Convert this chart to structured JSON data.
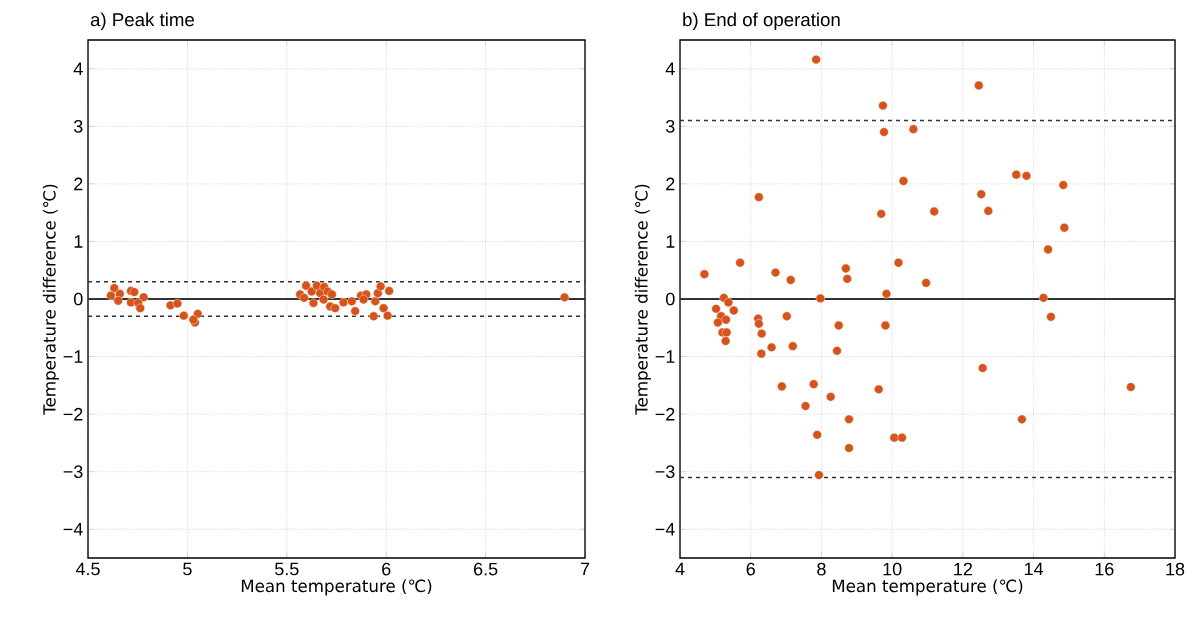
{
  "chart_data": [
    {
      "type": "scatter",
      "title": "a) Peak time",
      "xlabel": "Mean temperature (℃)",
      "ylabel": "Temperature difference (℃)",
      "color": "#d95319",
      "marker": "circle",
      "grid": true,
      "x": [
        4.632,
        4.615,
        4.66,
        4.652,
        4.716,
        4.733,
        4.78,
        4.716,
        4.753,
        4.763,
        4.915,
        4.95,
        4.982,
        5.052,
        5.038,
        5.03,
        5.567,
        5.597,
        5.587,
        5.625,
        5.651,
        5.668,
        5.688,
        5.705,
        5.727,
        5.634,
        5.685,
        5.718,
        5.743,
        5.785,
        5.827,
        5.844,
        5.873,
        5.9,
        5.886,
        5.937,
        5.945,
        5.958,
        5.972,
        5.987,
        6.007,
        6.015,
        6.897
      ],
      "values": [
        0.19,
        0.06,
        0.09,
        -0.03,
        0.14,
        0.12,
        0.03,
        -0.06,
        -0.07,
        -0.16,
        -0.11,
        -0.08,
        -0.29,
        -0.26,
        -0.41,
        -0.36,
        0.08,
        0.23,
        0.02,
        0.13,
        0.23,
        0.1,
        0.21,
        0.13,
        0.08,
        -0.07,
        -0.01,
        -0.13,
        -0.16,
        -0.06,
        -0.04,
        -0.21,
        0.06,
        0.08,
        -0.01,
        -0.3,
        -0.04,
        0.1,
        0.22,
        -0.16,
        -0.29,
        0.14,
        0.03
      ],
      "xlim": [
        4.5,
        7
      ],
      "xticks": [
        4.5,
        5,
        5.5,
        6,
        6.5,
        7
      ],
      "ylim": [
        -4.5,
        4.5
      ],
      "yticks": [
        {
          "value": -4,
          "label": "−4"
        },
        {
          "value": -3,
          "label": "−3"
        },
        {
          "value": -2,
          "label": "−2"
        },
        {
          "value": -1,
          "label": "−1"
        },
        0,
        1,
        2,
        3,
        4
      ],
      "ref_lines": [
        {
          "axis": "y",
          "value": 0,
          "label": null,
          "color": "#333333",
          "line_style": "solid"
        },
        {
          "axis": "y",
          "value": 0.3,
          "label": null,
          "color": "#333333",
          "line_style": "dashed"
        },
        {
          "axis": "y",
          "value": -0.3,
          "label": null,
          "color": "#333333",
          "line_style": "dashed"
        }
      ]
    },
    {
      "type": "scatter",
      "title": "b) End of operation",
      "xlabel": "Mean temperature (℃)",
      "ylabel": "Temperature difference (℃)",
      "color": "#d95319",
      "marker": "circle",
      "grid": true,
      "x": [
        7.85,
        9.74,
        9.77,
        10.6,
        10.32,
        6.23,
        9.69,
        11.19,
        5.7,
        4.69,
        6.7,
        7.13,
        8.69,
        8.73,
        10.18,
        10.96,
        9.84,
        7.97,
        5.24,
        5.37,
        5.02,
        5.52,
        5.16,
        5.3,
        5.07,
        5.2,
        5.32,
        5.29,
        6.21,
        6.23,
        6.31,
        7.02,
        8.49,
        9.81,
        6.59,
        7.19,
        6.3,
        8.44,
        6.88,
        7.78,
        9.62,
        8.26,
        7.55,
        8.78,
        7.88,
        10.06,
        10.28,
        8.78,
        7.93,
        12.45,
        13.51,
        13.8,
        14.84,
        12.52,
        12.72,
        14.87,
        14.41,
        14.28,
        14.49,
        12.56,
        16.75,
        13.67
      ],
      "values": [
        4.16,
        3.36,
        2.9,
        2.95,
        2.05,
        1.77,
        1.48,
        1.52,
        0.63,
        0.43,
        0.46,
        0.33,
        0.53,
        0.35,
        0.63,
        0.28,
        0.09,
        0.01,
        0.02,
        -0.06,
        -0.17,
        -0.2,
        -0.3,
        -0.36,
        -0.41,
        -0.58,
        -0.58,
        -0.73,
        -0.34,
        -0.43,
        -0.6,
        -0.3,
        -0.46,
        -0.46,
        -0.84,
        -0.82,
        -0.95,
        -0.9,
        -1.52,
        -1.48,
        -1.57,
        -1.7,
        -1.86,
        -2.09,
        -2.36,
        -2.41,
        -2.41,
        -2.59,
        -3.06,
        3.71,
        2.16,
        2.14,
        1.98,
        1.82,
        1.53,
        1.24,
        0.86,
        0.02,
        -0.31,
        -1.2,
        -1.53,
        -2.09
      ],
      "xlim": [
        4,
        18
      ],
      "xticks": [
        4,
        6,
        8,
        10,
        12,
        14,
        16,
        18
      ],
      "ylim": [
        -4.5,
        4.5
      ],
      "yticks": [
        {
          "value": -4,
          "label": "−4"
        },
        {
          "value": -3,
          "label": "−3"
        },
        {
          "value": -2,
          "label": "−2"
        },
        {
          "value": -1,
          "label": "−1"
        },
        0,
        1,
        2,
        3,
        4
      ],
      "ref_lines": [
        {
          "axis": "y",
          "value": 0,
          "label": null,
          "color": "#333333",
          "line_style": "solid"
        },
        {
          "axis": "y",
          "value": 3.1,
          "label": null,
          "color": "#333333",
          "line_style": "dashed"
        },
        {
          "axis": "y",
          "value": -3.1,
          "label": null,
          "color": "#333333",
          "line_style": "dashed"
        }
      ]
    }
  ]
}
